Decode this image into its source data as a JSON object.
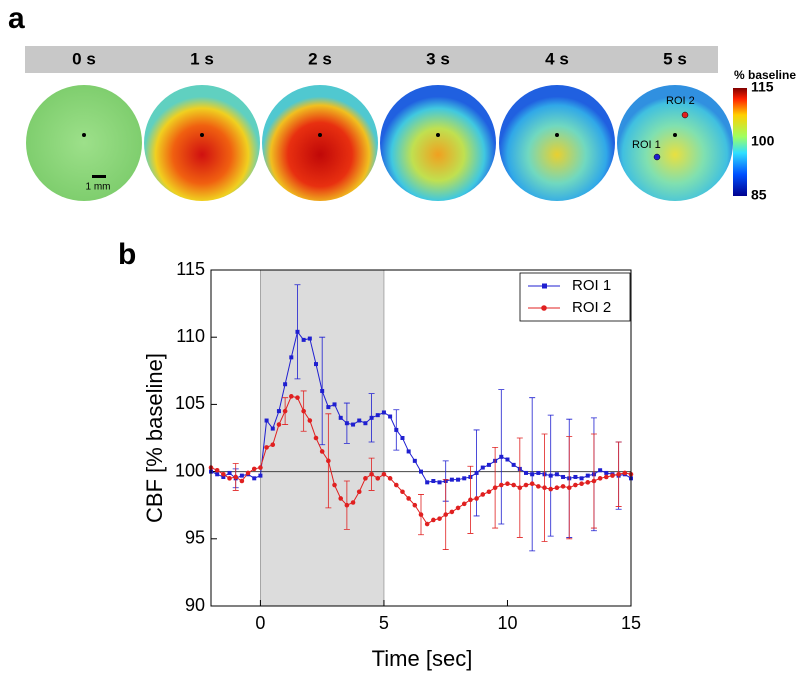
{
  "panel_labels": [
    "a",
    "b"
  ],
  "panel_a": {
    "times": [
      "0 s",
      "1 s",
      "2 s",
      "3 s",
      "4 s",
      "5 s"
    ],
    "scale_bar": "1 mm",
    "roi_labels": [
      "ROI 1",
      "ROI 2"
    ],
    "colorbar": {
      "title": "% baseline",
      "lim": [
        85,
        115
      ],
      "ticks": [
        115,
        100,
        85
      ]
    }
  },
  "chart_data": {
    "type": "line",
    "xlabel": "Time [sec]",
    "ylabel": "CBF [% baseline]",
    "xlim": [
      -2,
      15
    ],
    "xticks": [
      0,
      5,
      10,
      15
    ],
    "ylim": [
      90,
      115
    ],
    "yticks": [
      90,
      95,
      100,
      105,
      110,
      115
    ],
    "shaded_span": [
      0,
      5
    ],
    "hline": 100,
    "legend": "upper right",
    "x": [
      -2,
      -1.75,
      -1.5,
      -1.25,
      -1,
      -0.75,
      -0.5,
      -0.25,
      0,
      0.25,
      0.5,
      0.75,
      1,
      1.25,
      1.5,
      1.75,
      2,
      2.25,
      2.5,
      2.75,
      3,
      3.25,
      3.5,
      3.75,
      4,
      4.25,
      4.5,
      4.75,
      5,
      5.25,
      5.5,
      5.75,
      6,
      6.25,
      6.5,
      6.75,
      7,
      7.25,
      7.5,
      7.75,
      8,
      8.25,
      8.5,
      8.75,
      9,
      9.25,
      9.5,
      9.75,
      10,
      10.25,
      10.5,
      10.75,
      11,
      11.25,
      11.5,
      11.75,
      12,
      12.25,
      12.5,
      12.75,
      13,
      13.25,
      13.5,
      13.75,
      14,
      14.25,
      14.5,
      14.75,
      15
    ],
    "series": [
      {
        "name": "ROI 1",
        "color": "#1f1fd0",
        "marker": "square",
        "values": [
          100.0,
          99.8,
          99.6,
          99.9,
          99.5,
          99.7,
          99.8,
          99.5,
          99.7,
          103.8,
          103.2,
          104.5,
          106.5,
          108.5,
          110.4,
          109.8,
          109.9,
          108.0,
          106.0,
          104.8,
          105.0,
          104.0,
          103.6,
          103.5,
          103.8,
          103.6,
          104.0,
          104.2,
          104.4,
          104.1,
          103.1,
          102.5,
          101.5,
          100.8,
          100.0,
          99.2,
          99.3,
          99.2,
          99.3,
          99.4,
          99.4,
          99.5,
          99.6,
          99.9,
          100.3,
          100.5,
          100.8,
          101.1,
          100.9,
          100.5,
          100.2,
          99.9,
          99.8,
          99.9,
          99.8,
          99.7,
          99.8,
          99.6,
          99.5,
          99.6,
          99.5,
          99.7,
          99.8,
          100.1,
          99.9,
          99.8,
          99.7,
          99.8,
          99.5
        ],
        "errors": [
          null,
          null,
          null,
          null,
          0.7,
          null,
          null,
          null,
          null,
          null,
          null,
          null,
          null,
          null,
          3.5,
          null,
          null,
          null,
          4,
          null,
          null,
          null,
          1.5,
          null,
          null,
          null,
          1.8,
          null,
          null,
          null,
          1.5,
          null,
          null,
          null,
          null,
          null,
          null,
          null,
          1.5,
          null,
          null,
          null,
          null,
          3.2,
          null,
          null,
          null,
          5,
          null,
          null,
          null,
          null,
          5.7,
          null,
          null,
          4.5,
          null,
          null,
          4.4,
          null,
          null,
          null,
          4.2,
          null,
          null,
          null,
          2.5,
          null,
          null
        ]
      },
      {
        "name": "ROI 2",
        "color": "#e02020",
        "marker": "circle",
        "values": [
          100.3,
          100.1,
          99.8,
          99.5,
          99.6,
          99.3,
          99.9,
          100.2,
          100.3,
          101.8,
          102.0,
          103.5,
          104.5,
          105.6,
          105.5,
          104.5,
          103.8,
          102.5,
          101.5,
          100.8,
          99.0,
          98.0,
          97.5,
          97.7,
          98.5,
          99.5,
          99.8,
          99.5,
          99.8,
          99.5,
          99.0,
          98.5,
          98.0,
          97.5,
          96.8,
          96.1,
          96.4,
          96.5,
          96.8,
          97.0,
          97.3,
          97.6,
          97.9,
          98.0,
          98.3,
          98.5,
          98.8,
          99.0,
          99.1,
          99.0,
          98.8,
          99.0,
          99.1,
          98.9,
          98.8,
          98.7,
          98.8,
          98.9,
          98.8,
          99.0,
          99.1,
          99.2,
          99.3,
          99.5,
          99.6,
          99.7,
          99.8,
          99.9,
          99.8
        ],
        "errors": [
          null,
          null,
          null,
          null,
          1,
          null,
          null,
          null,
          null,
          null,
          null,
          null,
          1,
          null,
          null,
          1.5,
          null,
          null,
          null,
          3.5,
          null,
          null,
          1.8,
          null,
          null,
          null,
          1.2,
          null,
          null,
          null,
          null,
          null,
          null,
          null,
          1.5,
          null,
          null,
          null,
          2.6,
          null,
          null,
          null,
          2.5,
          null,
          null,
          null,
          3,
          null,
          null,
          null,
          3.7,
          null,
          null,
          null,
          4,
          null,
          null,
          null,
          3.8,
          null,
          null,
          null,
          3.5,
          null,
          null,
          null,
          2.4,
          null,
          null
        ]
      }
    ]
  }
}
